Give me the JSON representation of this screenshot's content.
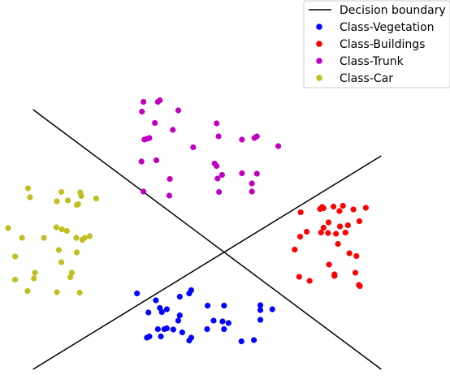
{
  "chart_data": {
    "type": "scatter",
    "title": "",
    "xlabel": "",
    "ylabel": "",
    "axes_visible": false,
    "xlim": [
      -4,
      4
    ],
    "ylim": [
      -4,
      3.8
    ],
    "legend": {
      "placement": "top-right",
      "entries": [
        {
          "key": "boundary",
          "label": "Decision boundary"
        },
        {
          "key": "veg",
          "label": "Class-Vegetation"
        },
        {
          "key": "bld",
          "label": "Class-Buildings"
        },
        {
          "key": "trk",
          "label": "Class-Trunk"
        },
        {
          "key": "car",
          "label": "Class-Car"
        }
      ]
    },
    "boundary": {
      "color": "#000000",
      "lines": [
        [
          [
            -3.5,
            3.1
          ],
          [
            3.5,
            -3.3
          ]
        ],
        [
          [
            -3.5,
            -3.3
          ],
          [
            3.5,
            1.96
          ]
        ]
      ]
    },
    "series": [
      {
        "key": "veg",
        "color": "#0000ff",
        "points": [
          [
            -1.41,
            -1.43
          ],
          [
            -1.03,
            -1.6
          ],
          [
            -0.55,
            -1.51
          ],
          [
            -0.36,
            -1.43
          ],
          [
            -0.32,
            -1.35
          ],
          [
            -0.95,
            -1.79
          ],
          [
            -0.81,
            -1.82
          ],
          [
            -1.18,
            -1.9
          ],
          [
            -0.91,
            -1.89
          ],
          [
            -0.55,
            -1.97
          ],
          [
            0.01,
            -1.73
          ],
          [
            0.34,
            -1.73
          ],
          [
            1.07,
            -1.72
          ],
          [
            1.31,
            -1.82
          ],
          [
            1.07,
            -1.84
          ],
          [
            0.13,
            -2.1
          ],
          [
            0.31,
            -2.12
          ],
          [
            0.43,
            -2.16
          ],
          [
            1.07,
            -2.08
          ],
          [
            -0.58,
            -2.1
          ],
          [
            -0.81,
            -2.29
          ],
          [
            -0.99,
            -2.31
          ],
          [
            -0.86,
            -2.31
          ],
          [
            -0.68,
            -2.32
          ],
          [
            -0.5,
            -2.39
          ],
          [
            0.0,
            -2.31
          ],
          [
            0.34,
            -2.31
          ],
          [
            -1.16,
            -2.49
          ],
          [
            -1.21,
            -2.52
          ],
          [
            -0.93,
            -2.49
          ],
          [
            -0.32,
            -2.52
          ],
          [
            -0.36,
            -2.59
          ],
          [
            0.69,
            -2.61
          ],
          [
            0.94,
            -2.58
          ]
        ]
      },
      {
        "key": "bld",
        "color": "#ff0000",
        "points": [
          [
            2.73,
            0.73
          ],
          [
            2.54,
            0.71
          ],
          [
            2.27,
            0.65
          ],
          [
            2.34,
            0.67
          ],
          [
            2.31,
            0.7
          ],
          [
            2.94,
            0.64
          ],
          [
            3.19,
            0.68
          ],
          [
            2.66,
            0.6
          ],
          [
            1.88,
            0.57
          ],
          [
            2.44,
            0.32
          ],
          [
            3.06,
            0.35
          ],
          [
            2.34,
            0.19
          ],
          [
            2.83,
            0.25
          ],
          [
            2.67,
            0.22
          ],
          [
            2.0,
            0.09
          ],
          [
            2.29,
            0.07
          ],
          [
            2.43,
            0.06
          ],
          [
            2.59,
            0.04
          ],
          [
            2.78,
            0.07
          ],
          [
            1.87,
            -0.03
          ],
          [
            2.63,
            -0.21
          ],
          [
            1.76,
            -0.35
          ],
          [
            2.86,
            -0.44
          ],
          [
            3.0,
            -0.51
          ],
          [
            2.45,
            -0.72
          ],
          [
            2.98,
            -0.92
          ],
          [
            1.85,
            -1.02
          ],
          [
            2.56,
            -0.96
          ],
          [
            2.56,
            -1.0
          ],
          [
            2.06,
            -1.12
          ],
          [
            3.05,
            -1.22
          ],
          [
            3.07,
            -1.25
          ]
        ]
      },
      {
        "key": "trk",
        "color": "#bf00bf",
        "points": [
          [
            -1.28,
            3.29
          ],
          [
            -0.99,
            3.29
          ],
          [
            -0.95,
            3.33
          ],
          [
            -0.58,
            3.08
          ],
          [
            -1.31,
            3.05
          ],
          [
            -1.05,
            2.77
          ],
          [
            0.19,
            2.76
          ],
          [
            -0.69,
            2.6
          ],
          [
            0.23,
            2.44
          ],
          [
            0.95,
            2.4
          ],
          [
            1.0,
            2.44
          ],
          [
            0.7,
            2.36
          ],
          [
            -1.16,
            2.4
          ],
          [
            -1.26,
            2.36
          ],
          [
            -1.21,
            2.38
          ],
          [
            1.43,
            2.2
          ],
          [
            -0.28,
            2.17
          ],
          [
            -1.32,
            1.82
          ],
          [
            -1.02,
            1.85
          ],
          [
            0.15,
            1.77
          ],
          [
            0.19,
            1.71
          ],
          [
            0.7,
            1.53
          ],
          [
            1.0,
            1.52
          ],
          [
            0.3,
            1.49
          ],
          [
            -0.75,
            1.39
          ],
          [
            0.21,
            1.4
          ],
          [
            0.9,
            1.28
          ],
          [
            -1.28,
            1.08
          ],
          [
            0.24,
            1.07
          ],
          [
            0.9,
            1.08
          ],
          [
            -0.76,
            0.98
          ]
        ]
      },
      {
        "key": "car",
        "color": "#bfbf20",
        "points": [
          [
            -3.6,
            1.16
          ],
          [
            -3.56,
            0.94
          ],
          [
            -2.93,
            1.07
          ],
          [
            -2.55,
            1.06
          ],
          [
            -2.53,
            0.97
          ],
          [
            -2.23,
            0.91
          ],
          [
            -3.02,
            0.84
          ],
          [
            -2.8,
            0.86
          ],
          [
            -2.59,
            0.77
          ],
          [
            -2.62,
            0.75
          ],
          [
            -4.0,
            0.18
          ],
          [
            -3.03,
            0.2
          ],
          [
            -2.92,
            0.15
          ],
          [
            -2.82,
            0.11
          ],
          [
            -3.72,
            -0.06
          ],
          [
            -2.63,
            -0.06
          ],
          [
            -2.36,
            -0.02
          ],
          [
            -2.51,
            -0.11
          ],
          [
            -3.28,
            -0.06
          ],
          [
            -2.46,
            -0.06
          ],
          [
            -2.98,
            -0.36
          ],
          [
            -2.62,
            -0.42
          ],
          [
            -3.86,
            -0.52
          ],
          [
            -2.93,
            -0.66
          ],
          [
            -3.46,
            -0.92
          ],
          [
            -2.72,
            -0.92
          ],
          [
            -3.48,
            -1.06
          ],
          [
            -3.86,
            -1.09
          ],
          [
            -2.75,
            -1.03
          ],
          [
            -3.61,
            -1.37
          ],
          [
            -3.02,
            -1.4
          ],
          [
            -2.56,
            -1.41
          ]
        ]
      }
    ]
  }
}
